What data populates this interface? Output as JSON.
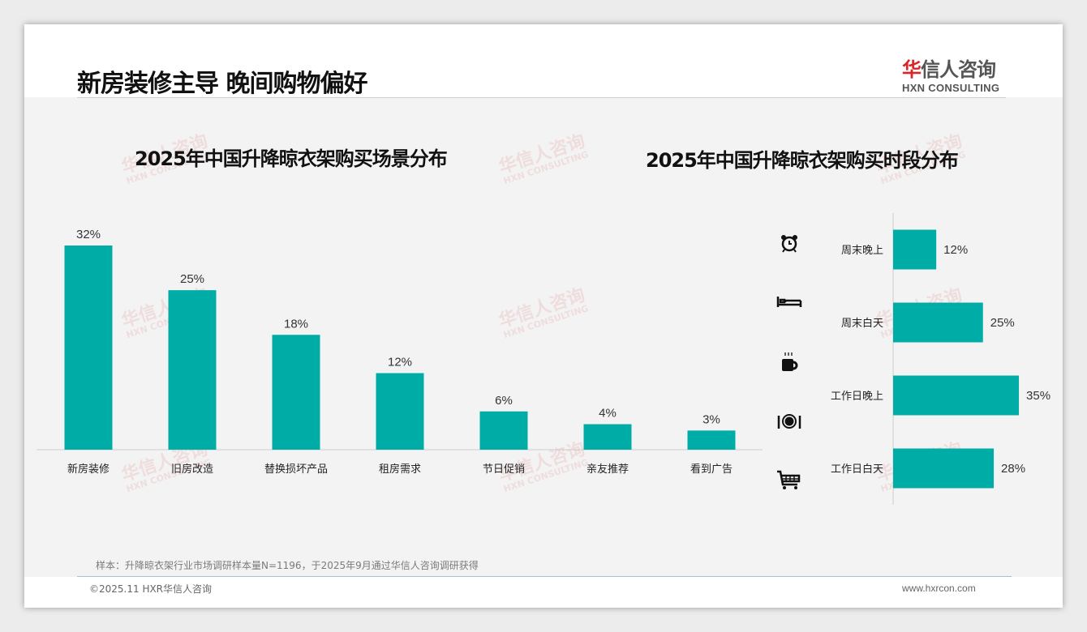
{
  "header": {
    "title": "新房装修主导 晚间购物偏好",
    "logo_cn_red": "华",
    "logo_cn": "信人咨询",
    "logo_en": "HXN CONSULTING"
  },
  "watermark": {
    "cn": "华信人咨询",
    "en": "HXN CONSULTING"
  },
  "colors": {
    "bar": "#00ADA6",
    "text": "#333333"
  },
  "chart_data": [
    {
      "type": "bar",
      "title": "2025年中国升降晾衣架购买场景分布",
      "categories": [
        "新房装修",
        "旧房改造",
        "替换损坏产品",
        "租房需求",
        "节日促销",
        "亲友推荐",
        "看到广告"
      ],
      "values": [
        32,
        25,
        18,
        12,
        6,
        4,
        3
      ],
      "labels": [
        "32%",
        "25%",
        "18%",
        "12%",
        "6%",
        "4%",
        "3%"
      ],
      "ylim": [
        0,
        35
      ],
      "grid": false
    },
    {
      "type": "bar",
      "orientation": "horizontal",
      "title": "2025年中国升降晾衣架购买时段分布",
      "categories": [
        "周末晚上",
        "周末白天",
        "工作日晚上",
        "工作日白天"
      ],
      "values": [
        12,
        25,
        35,
        28
      ],
      "labels": [
        "12%",
        "25%",
        "35%",
        "28%"
      ],
      "icons": [
        "alarm-clock-icon",
        "bed-icon",
        "coffee-cup-icon",
        "dining-plate-icon",
        "shopping-cart-icon"
      ],
      "xlim": [
        0,
        40
      ],
      "grid": false
    }
  ],
  "footer": {
    "note": "样本：升降晾衣架行业市场调研样本量N=1196，于2025年9月通过华信人咨询调研获得",
    "copyright": "©2025.11 HXR华信人咨询",
    "website": "www.hxrcon.com"
  }
}
